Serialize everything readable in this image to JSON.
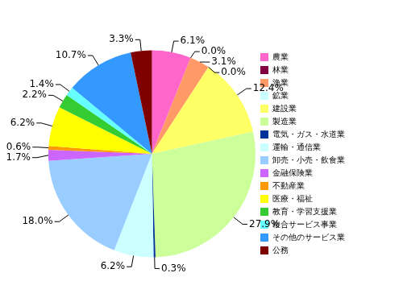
{
  "chart_data": {
    "type": "pie",
    "categories": [
      "農業",
      "林業",
      "漁業",
      "鉱業",
      "建設業",
      "製造業",
      "電気・ガス・水道業",
      "運輸・通信業",
      "卸売・小売・飲食業",
      "金融保険業",
      "不動産業",
      "医療・福祉",
      "教育・学習支援業",
      "複合サービス事業",
      "その他のサービス業",
      "公務"
    ],
    "values": [
      6.1,
      0.0,
      3.1,
      0.0,
      12.4,
      27.9,
      0.3,
      6.2,
      18.0,
      1.7,
      0.6,
      6.2,
      2.2,
      1.4,
      10.7,
      3.3
    ],
    "value_labels": [
      "6.1%",
      "0.0%",
      "3.1%",
      "0.0%",
      "12.4%",
      "27.9%",
      "0.3%",
      "6.2%",
      "18.0%",
      "1.7%",
      "0.6%",
      "6.2%",
      "2.2%",
      "1.4%",
      "10.7%",
      "3.3%"
    ],
    "colors": [
      "#ff66cc",
      "#800040",
      "#ff9966",
      "#ccffff",
      "#ffff66",
      "#ccff99",
      "#003399",
      "#ccffff",
      "#99ccff",
      "#cc66ff",
      "#ff9900",
      "#ffff00",
      "#33cc33",
      "#66ffff",
      "#3399ff",
      "#800000"
    ],
    "legend": "right",
    "data_labels": true
  }
}
